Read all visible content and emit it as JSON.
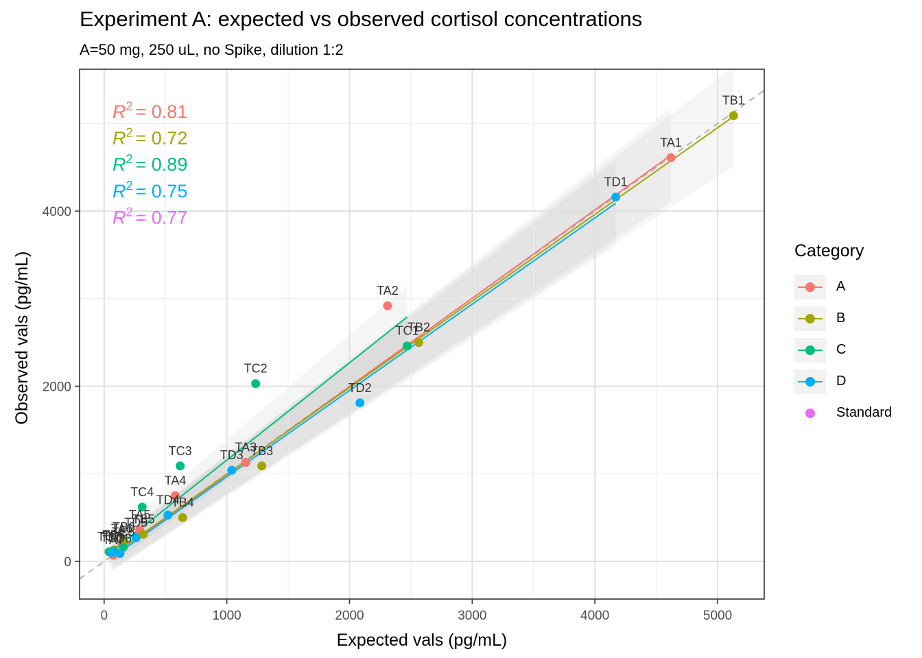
{
  "title": "Experiment A: expected vs observed cortisol concentrations",
  "subtitle": "A=50 mg, 250 uL, no Spike, dilution 1:2",
  "chart_data": {
    "type": "scatter",
    "xlabel": "Expected vals (pg/mL)",
    "ylabel": "Observed vals (pg/mL)",
    "xlim": [
      -200,
      5380
    ],
    "ylim": [
      -430,
      5620
    ],
    "xticks": [
      0,
      1000,
      2000,
      3000,
      4000,
      5000
    ],
    "yticks": [
      0,
      2000,
      4000
    ],
    "grid": true,
    "reference_line": "identity (y = x), dashed grey",
    "legend": {
      "title": "Category",
      "position": "right",
      "entries": [
        {
          "name": "A",
          "color": "#F8766D"
        },
        {
          "name": "B",
          "color": "#A3A500"
        },
        {
          "name": "C",
          "color": "#00BF7D"
        },
        {
          "name": "D",
          "color": "#00B0F6"
        },
        {
          "name": "Standard",
          "color": "#E76BF3"
        }
      ]
    },
    "r2_labels": [
      {
        "category": "A",
        "text": "= 0.81",
        "color": "#F8766D"
      },
      {
        "category": "B",
        "text": "= 0.72",
        "color": "#A3A500"
      },
      {
        "category": "C",
        "text": "= 0.89",
        "color": "#00BF7D"
      },
      {
        "category": "D",
        "text": "= 0.75",
        "color": "#00B0F6"
      },
      {
        "category": "Standard",
        "text": "= 0.77",
        "color": "#E76BF3"
      }
    ],
    "series": [
      {
        "name": "A",
        "color": "#F8766D",
        "fit": [
          [
            80,
            60
          ],
          [
            4620,
            4640
          ]
        ],
        "points": [
          {
            "label": "TA1",
            "x": 4620,
            "y": 4610
          },
          {
            "label": "TA2",
            "x": 2310,
            "y": 2920
          },
          {
            "label": "TA3",
            "x": 1155,
            "y": 1130
          },
          {
            "label": "TA4",
            "x": 580,
            "y": 750
          },
          {
            "label": "TA5",
            "x": 290,
            "y": 360
          },
          {
            "label": "TA6",
            "x": 145,
            "y": 200
          },
          {
            "label": "TA7",
            "x": 75,
            "y": 70
          }
        ]
      },
      {
        "name": "B",
        "color": "#A3A500",
        "fit": [
          [
            65,
            70
          ],
          [
            5130,
            5080
          ]
        ],
        "points": [
          {
            "label": "TB1",
            "x": 5130,
            "y": 5090
          },
          {
            "label": "TB2",
            "x": 2565,
            "y": 2500
          },
          {
            "label": "TB3",
            "x": 1285,
            "y": 1090
          },
          {
            "label": "TB4",
            "x": 640,
            "y": 500
          },
          {
            "label": "TB5",
            "x": 320,
            "y": 310
          },
          {
            "label": "TB6",
            "x": 160,
            "y": 220
          },
          {
            "label": "TB7",
            "x": 80,
            "y": 130
          }
        ]
      },
      {
        "name": "C",
        "color": "#00BF7D",
        "fit": [
          [
            40,
            90
          ],
          [
            2470,
            2790
          ]
        ],
        "points": [
          {
            "label": "TC1",
            "x": 2470,
            "y": 2460
          },
          {
            "label": "TC2",
            "x": 1235,
            "y": 2030
          },
          {
            "label": "TC3",
            "x": 620,
            "y": 1090
          },
          {
            "label": "TC4",
            "x": 310,
            "y": 620
          },
          {
            "label": "TC5",
            "x": 155,
            "y": 160
          },
          {
            "label": "TC6",
            "x": 80,
            "y": 120
          },
          {
            "label": "TC7",
            "x": 40,
            "y": 110
          }
        ]
      },
      {
        "name": "D",
        "color": "#00B0F6",
        "fit": [
          [
            50,
            30
          ],
          [
            4170,
            4090
          ]
        ],
        "points": [
          {
            "label": "TD1",
            "x": 4170,
            "y": 4160
          },
          {
            "label": "TD2",
            "x": 2085,
            "y": 1810
          },
          {
            "label": "TD3",
            "x": 1040,
            "y": 1040
          },
          {
            "label": "TD4",
            "x": 520,
            "y": 530
          },
          {
            "label": "TD5",
            "x": 260,
            "y": 270
          },
          {
            "label": "TD6",
            "x": 130,
            "y": 90
          },
          {
            "label": "TD7",
            "x": 65,
            "y": 100
          }
        ]
      },
      {
        "name": "Standard",
        "color": "#E76BF3",
        "points": []
      }
    ]
  }
}
